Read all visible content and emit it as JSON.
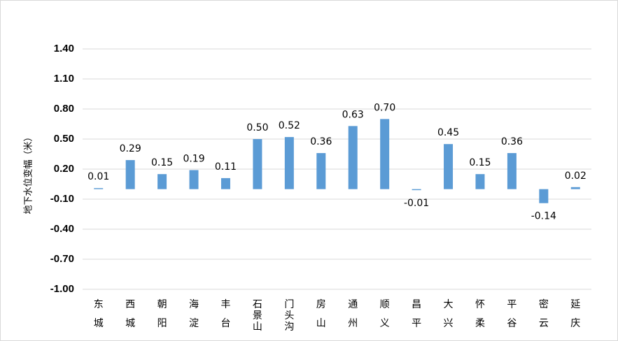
{
  "chart_data": {
    "type": "bar",
    "ylabel": "地下水位变幅（米）",
    "ylim": [
      -1.0,
      1.4
    ],
    "yticks": [
      "1.40",
      "1.10",
      "0.80",
      "0.50",
      "0.20",
      "-0.10",
      "-0.40",
      "-0.70",
      "-1.00"
    ],
    "categories": [
      "东城",
      "西城",
      "朝阳",
      "海淀",
      "丰台",
      "石景山",
      "门头沟",
      "房山",
      "通州",
      "顺义",
      "昌平",
      "大兴",
      "怀柔",
      "平谷",
      "密云",
      "延庆"
    ],
    "values": [
      0.01,
      0.29,
      0.15,
      0.19,
      0.11,
      0.5,
      0.52,
      0.36,
      0.63,
      0.7,
      -0.01,
      0.45,
      0.15,
      0.36,
      -0.14,
      0.02
    ],
    "value_labels": [
      "0.01",
      "0.29",
      "0.15",
      "0.19",
      "0.11",
      "0.50",
      "0.52",
      "0.36",
      "0.63",
      "0.70",
      "-0.01",
      "0.45",
      "0.15",
      "0.36",
      "-0.14",
      "0.02"
    ],
    "bar_color": "#5b9bd5",
    "grid": true,
    "legend": "none"
  }
}
